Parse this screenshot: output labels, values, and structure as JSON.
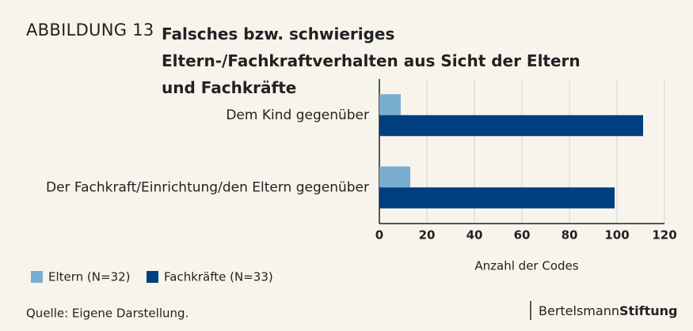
{
  "chart_data": {
    "type": "hbar",
    "label": "ABBILDUNG 13",
    "title": "Falsches bzw. schwieriges Eltern-/Fachkraftverhalten aus Sicht der Eltern und Fachkräfte",
    "categories": [
      "Dem Kind gegenüber",
      "Der Fachkraft/Einrichtung/den Eltern gegenüber"
    ],
    "series": [
      {
        "name": "Eltern (N=32)",
        "color": "#7aaed0",
        "values": [
          9,
          13
        ]
      },
      {
        "name": "Fachkräfte (N=33)",
        "color": "#003f7f",
        "values": [
          111,
          99
        ]
      }
    ],
    "xlim": [
      0,
      120
    ],
    "xticks": [
      0,
      20,
      40,
      60,
      80,
      100,
      120
    ],
    "grid": true,
    "xlabel": "Anzahl der Codes",
    "source": "Quelle: Eigene Darstellung.",
    "brand": [
      "Bertelsmann",
      "Stiftung"
    ]
  }
}
